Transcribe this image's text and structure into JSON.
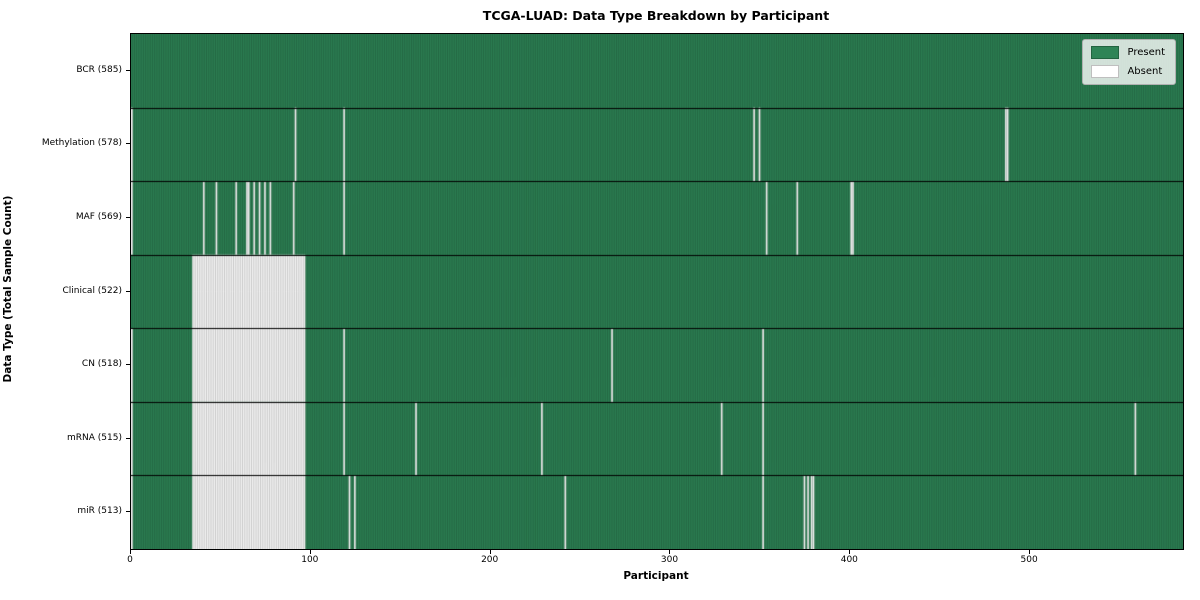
{
  "chart_data": {
    "type": "heatmap",
    "title": "TCGA-LUAD: Data Type Breakdown by Participant",
    "xlabel": "Participant",
    "ylabel": "Data Type (Total Sample Count)",
    "legend_labels": [
      "Present",
      "Absent"
    ],
    "legend_position": "upper right",
    "n_participants": 585,
    "x_ticks": [
      0,
      100,
      200,
      300,
      400,
      500
    ],
    "xlim": [
      0,
      585
    ],
    "grid": false,
    "colors": {
      "present": "#2e8456",
      "absent": "#ffffff",
      "cell_edge": "rgba(0,0,0,0.3)",
      "row_separator": "#000000",
      "plot_border": "#000000"
    },
    "rows": [
      {
        "label": "BCR (585)",
        "data_type": "BCR",
        "present_count": 585,
        "absent_participants": [],
        "absent_ranges": []
      },
      {
        "label": "Methylation (578)",
        "data_type": "Methylation",
        "present_count": 578,
        "absent_participants": [
          0,
          91,
          118,
          346,
          349,
          486,
          487
        ],
        "absent_ranges": []
      },
      {
        "label": "MAF (569)",
        "data_type": "MAF",
        "present_count": 569,
        "absent_participants": [
          0,
          40,
          47,
          58,
          64,
          65,
          68,
          71,
          74,
          77,
          90,
          118,
          353,
          370,
          400,
          401
        ],
        "absent_ranges": []
      },
      {
        "label": "Clinical (522)",
        "data_type": "Clinical",
        "present_count": 522,
        "absent_participants": [],
        "absent_ranges": [
          [
            34,
            96
          ]
        ]
      },
      {
        "label": "CN (518)",
        "data_type": "CN",
        "present_count": 518,
        "absent_participants": [
          0,
          118,
          267,
          351
        ],
        "absent_ranges": [
          [
            34,
            96
          ]
        ]
      },
      {
        "label": "mRNA (515)",
        "data_type": "mRNA",
        "present_count": 515,
        "absent_participants": [
          0,
          118,
          158,
          228,
          328,
          351,
          558
        ],
        "absent_ranges": [
          [
            34,
            96
          ]
        ]
      },
      {
        "label": "miR (513)",
        "data_type": "miR",
        "present_count": 513,
        "absent_participants": [
          0,
          121,
          124,
          241,
          351,
          374,
          376,
          378,
          379
        ],
        "absent_ranges": [
          [
            34,
            96
          ]
        ]
      }
    ]
  }
}
